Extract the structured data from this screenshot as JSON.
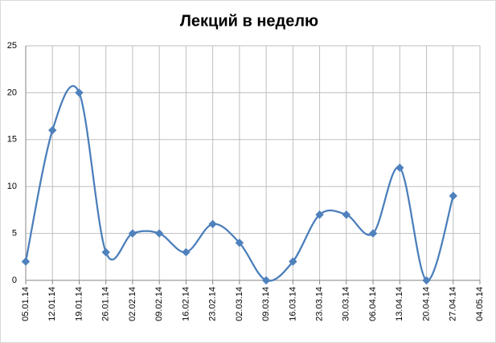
{
  "chart_data": {
    "type": "line",
    "title": "Лекций в неделю",
    "categories": [
      "05.01.14",
      "12.01.14",
      "19.01.14",
      "26.01.14",
      "02.02.14",
      "09.02.14",
      "16.02.14",
      "23.02.14",
      "02.03.14",
      "09.03.14",
      "16.03.14",
      "23.03.14",
      "30.03.14",
      "06.04.14",
      "13.04.14",
      "20.04.14",
      "27.04.14",
      "04.05.14"
    ],
    "values": [
      2,
      16,
      20,
      3,
      5,
      5,
      3,
      6,
      4,
      0,
      2,
      7,
      7,
      5,
      12,
      0,
      9,
      null
    ],
    "color": "#4a7ebb",
    "marker_color": "#4f81bd",
    "smooth": true,
    "ylim": [
      0,
      25
    ],
    "yticks": [
      0,
      5,
      10,
      15,
      20,
      25
    ],
    "grid": true
  }
}
